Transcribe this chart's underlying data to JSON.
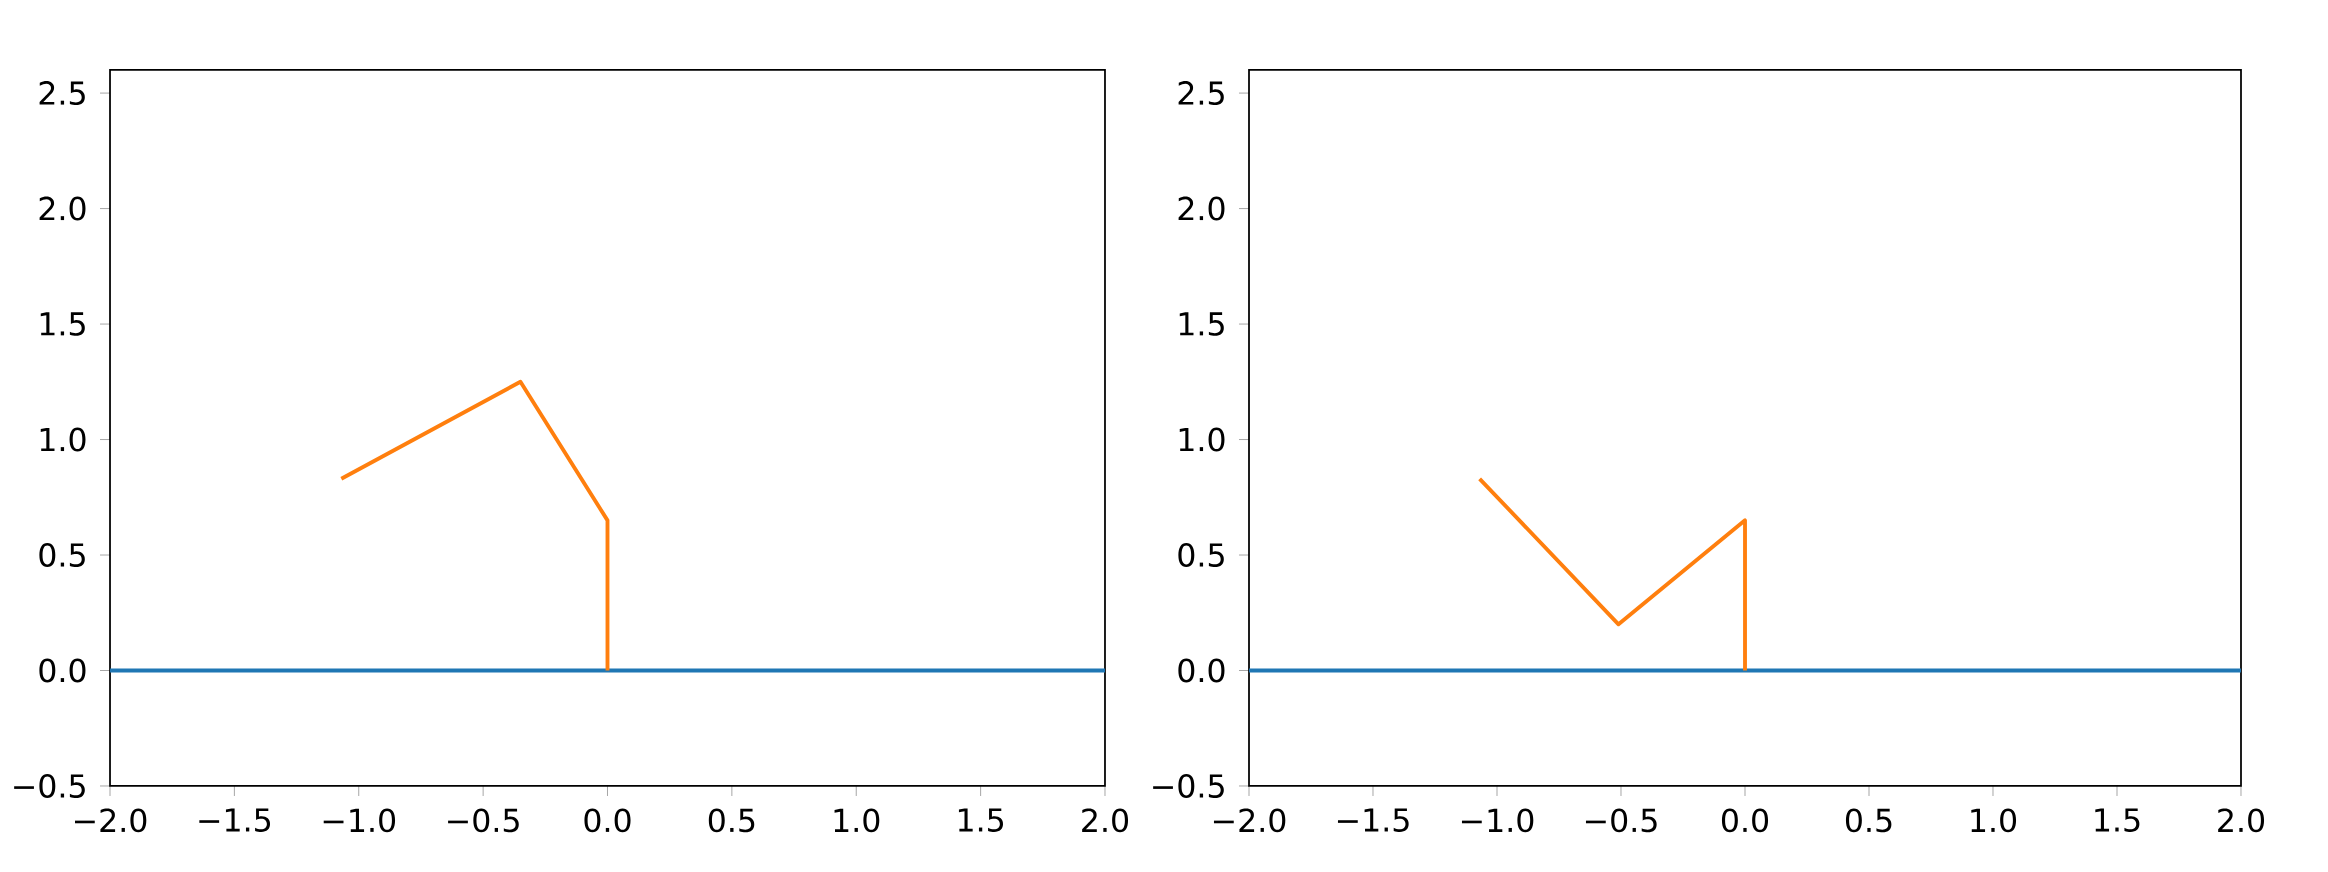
{
  "chart_data": [
    {
      "type": "line",
      "xlim": [
        -2,
        2
      ],
      "ylim": [
        -0.5,
        2.6
      ],
      "xticks": [
        {
          "value": -2,
          "label": "−2.0"
        },
        {
          "value": -1.5,
          "label": "−1.5"
        },
        {
          "value": -1,
          "label": "−1.0"
        },
        {
          "value": -0.5,
          "label": "−0.5"
        },
        {
          "value": 0,
          "label": "0.0"
        },
        {
          "value": 0.5,
          "label": "0.5"
        },
        {
          "value": 1,
          "label": "1.0"
        },
        {
          "value": 1.5,
          "label": "1.5"
        },
        {
          "value": 2,
          "label": "2.0"
        }
      ],
      "yticks": [
        {
          "value": -0.5,
          "label": "−0.5"
        },
        {
          "value": 0,
          "label": "0.0"
        },
        {
          "value": 0.5,
          "label": "0.5"
        },
        {
          "value": 1,
          "label": "1.0"
        },
        {
          "value": 1.5,
          "label": "1.5"
        },
        {
          "value": 2,
          "label": "2.0"
        },
        {
          "value": 2.5,
          "label": "2.5"
        }
      ],
      "series": [
        {
          "color": "#1f77b4",
          "x": [
            -2,
            2
          ],
          "values": [
            0,
            0
          ]
        },
        {
          "color": "#ff7f0e",
          "x": [
            -1.07,
            -0.35,
            0,
            0
          ],
          "values": [
            0.83,
            1.25,
            0.65,
            0
          ]
        }
      ]
    },
    {
      "type": "line",
      "xlim": [
        -2,
        2
      ],
      "ylim": [
        -0.5,
        2.6
      ],
      "xticks": [
        {
          "value": -2,
          "label": "−2.0"
        },
        {
          "value": -1.5,
          "label": "−1.5"
        },
        {
          "value": -1,
          "label": "−1.0"
        },
        {
          "value": -0.5,
          "label": "−0.5"
        },
        {
          "value": 0,
          "label": "0.0"
        },
        {
          "value": 0.5,
          "label": "0.5"
        },
        {
          "value": 1,
          "label": "1.0"
        },
        {
          "value": 1.5,
          "label": "1.5"
        },
        {
          "value": 2,
          "label": "2.0"
        }
      ],
      "yticks": [
        {
          "value": -0.5,
          "label": "−0.5"
        },
        {
          "value": 0,
          "label": "0.0"
        },
        {
          "value": 0.5,
          "label": "0.5"
        },
        {
          "value": 1,
          "label": "1.0"
        },
        {
          "value": 1.5,
          "label": "1.5"
        },
        {
          "value": 2,
          "label": "2.0"
        },
        {
          "value": 2.5,
          "label": "2.5"
        }
      ],
      "series": [
        {
          "color": "#1f77b4",
          "x": [
            -2,
            2
          ],
          "values": [
            0,
            0
          ]
        },
        {
          "color": "#ff7f0e",
          "x": [
            -1.07,
            -0.51,
            0,
            0
          ],
          "values": [
            0.83,
            0.2,
            0.65,
            0
          ]
        }
      ]
    }
  ]
}
